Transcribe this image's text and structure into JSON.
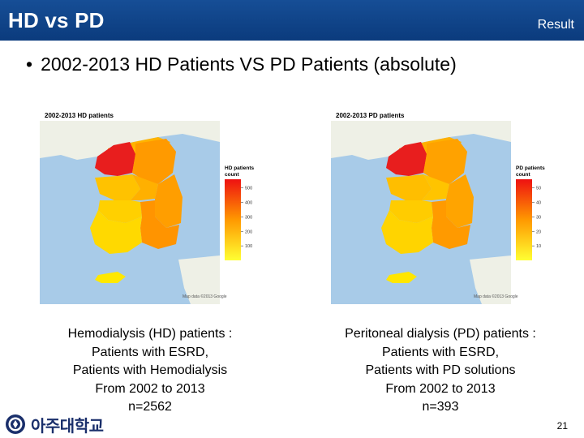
{
  "header": {
    "title": "HD vs PD",
    "section": "Result"
  },
  "bullet": {
    "symbol": "•",
    "text": "2002-2013 HD Patients VS PD Patients (absolute)"
  },
  "maps": [
    {
      "title": "2002-2013 HD patients",
      "legend_title_1": "HD patients",
      "legend_title_2": "count",
      "legend_ticks": [
        "500",
        "400",
        "300",
        "200",
        "100"
      ],
      "legend_values": [
        500,
        400,
        300,
        200,
        100
      ],
      "legend_max": 560,
      "hot_region": "Gyeonggi / Seoul",
      "colors": {
        "low": "#ffff33",
        "mid": "#ff9900",
        "high": "#ee1111"
      }
    },
    {
      "title": "2002-2013 PD patients",
      "legend_title_1": "PD patients",
      "legend_title_2": "count",
      "legend_ticks": [
        "50",
        "40",
        "30",
        "20",
        "10"
      ],
      "legend_values": [
        50,
        40,
        30,
        20,
        10
      ],
      "legend_max": 56,
      "hot_region": "Gyeonggi / Seoul",
      "colors": {
        "low": "#ffff33",
        "mid": "#ff9900",
        "high": "#ee1111"
      }
    }
  ],
  "captions": [
    {
      "line1": "Hemodialysis (HD) patients :",
      "line2": "Patients with ESRD,",
      "line3": "Patients with Hemodialysis",
      "line4": "From 2002 to 2013",
      "line5": "n=2562"
    },
    {
      "line1": "Peritoneal dialysis (PD) patients :",
      "line2": "Patients with ESRD,",
      "line3": "Patients with PD solutions",
      "line4": "From 2002 to 2013",
      "line5": "n=393"
    }
  ],
  "footer": {
    "logo_text": "아주대학교",
    "logo_icon": "university-seal-icon",
    "page_number": "21"
  },
  "colors": {
    "header_bg": "#123f85",
    "sea": "#a8cbe8",
    "land": "#eef0e6"
  }
}
